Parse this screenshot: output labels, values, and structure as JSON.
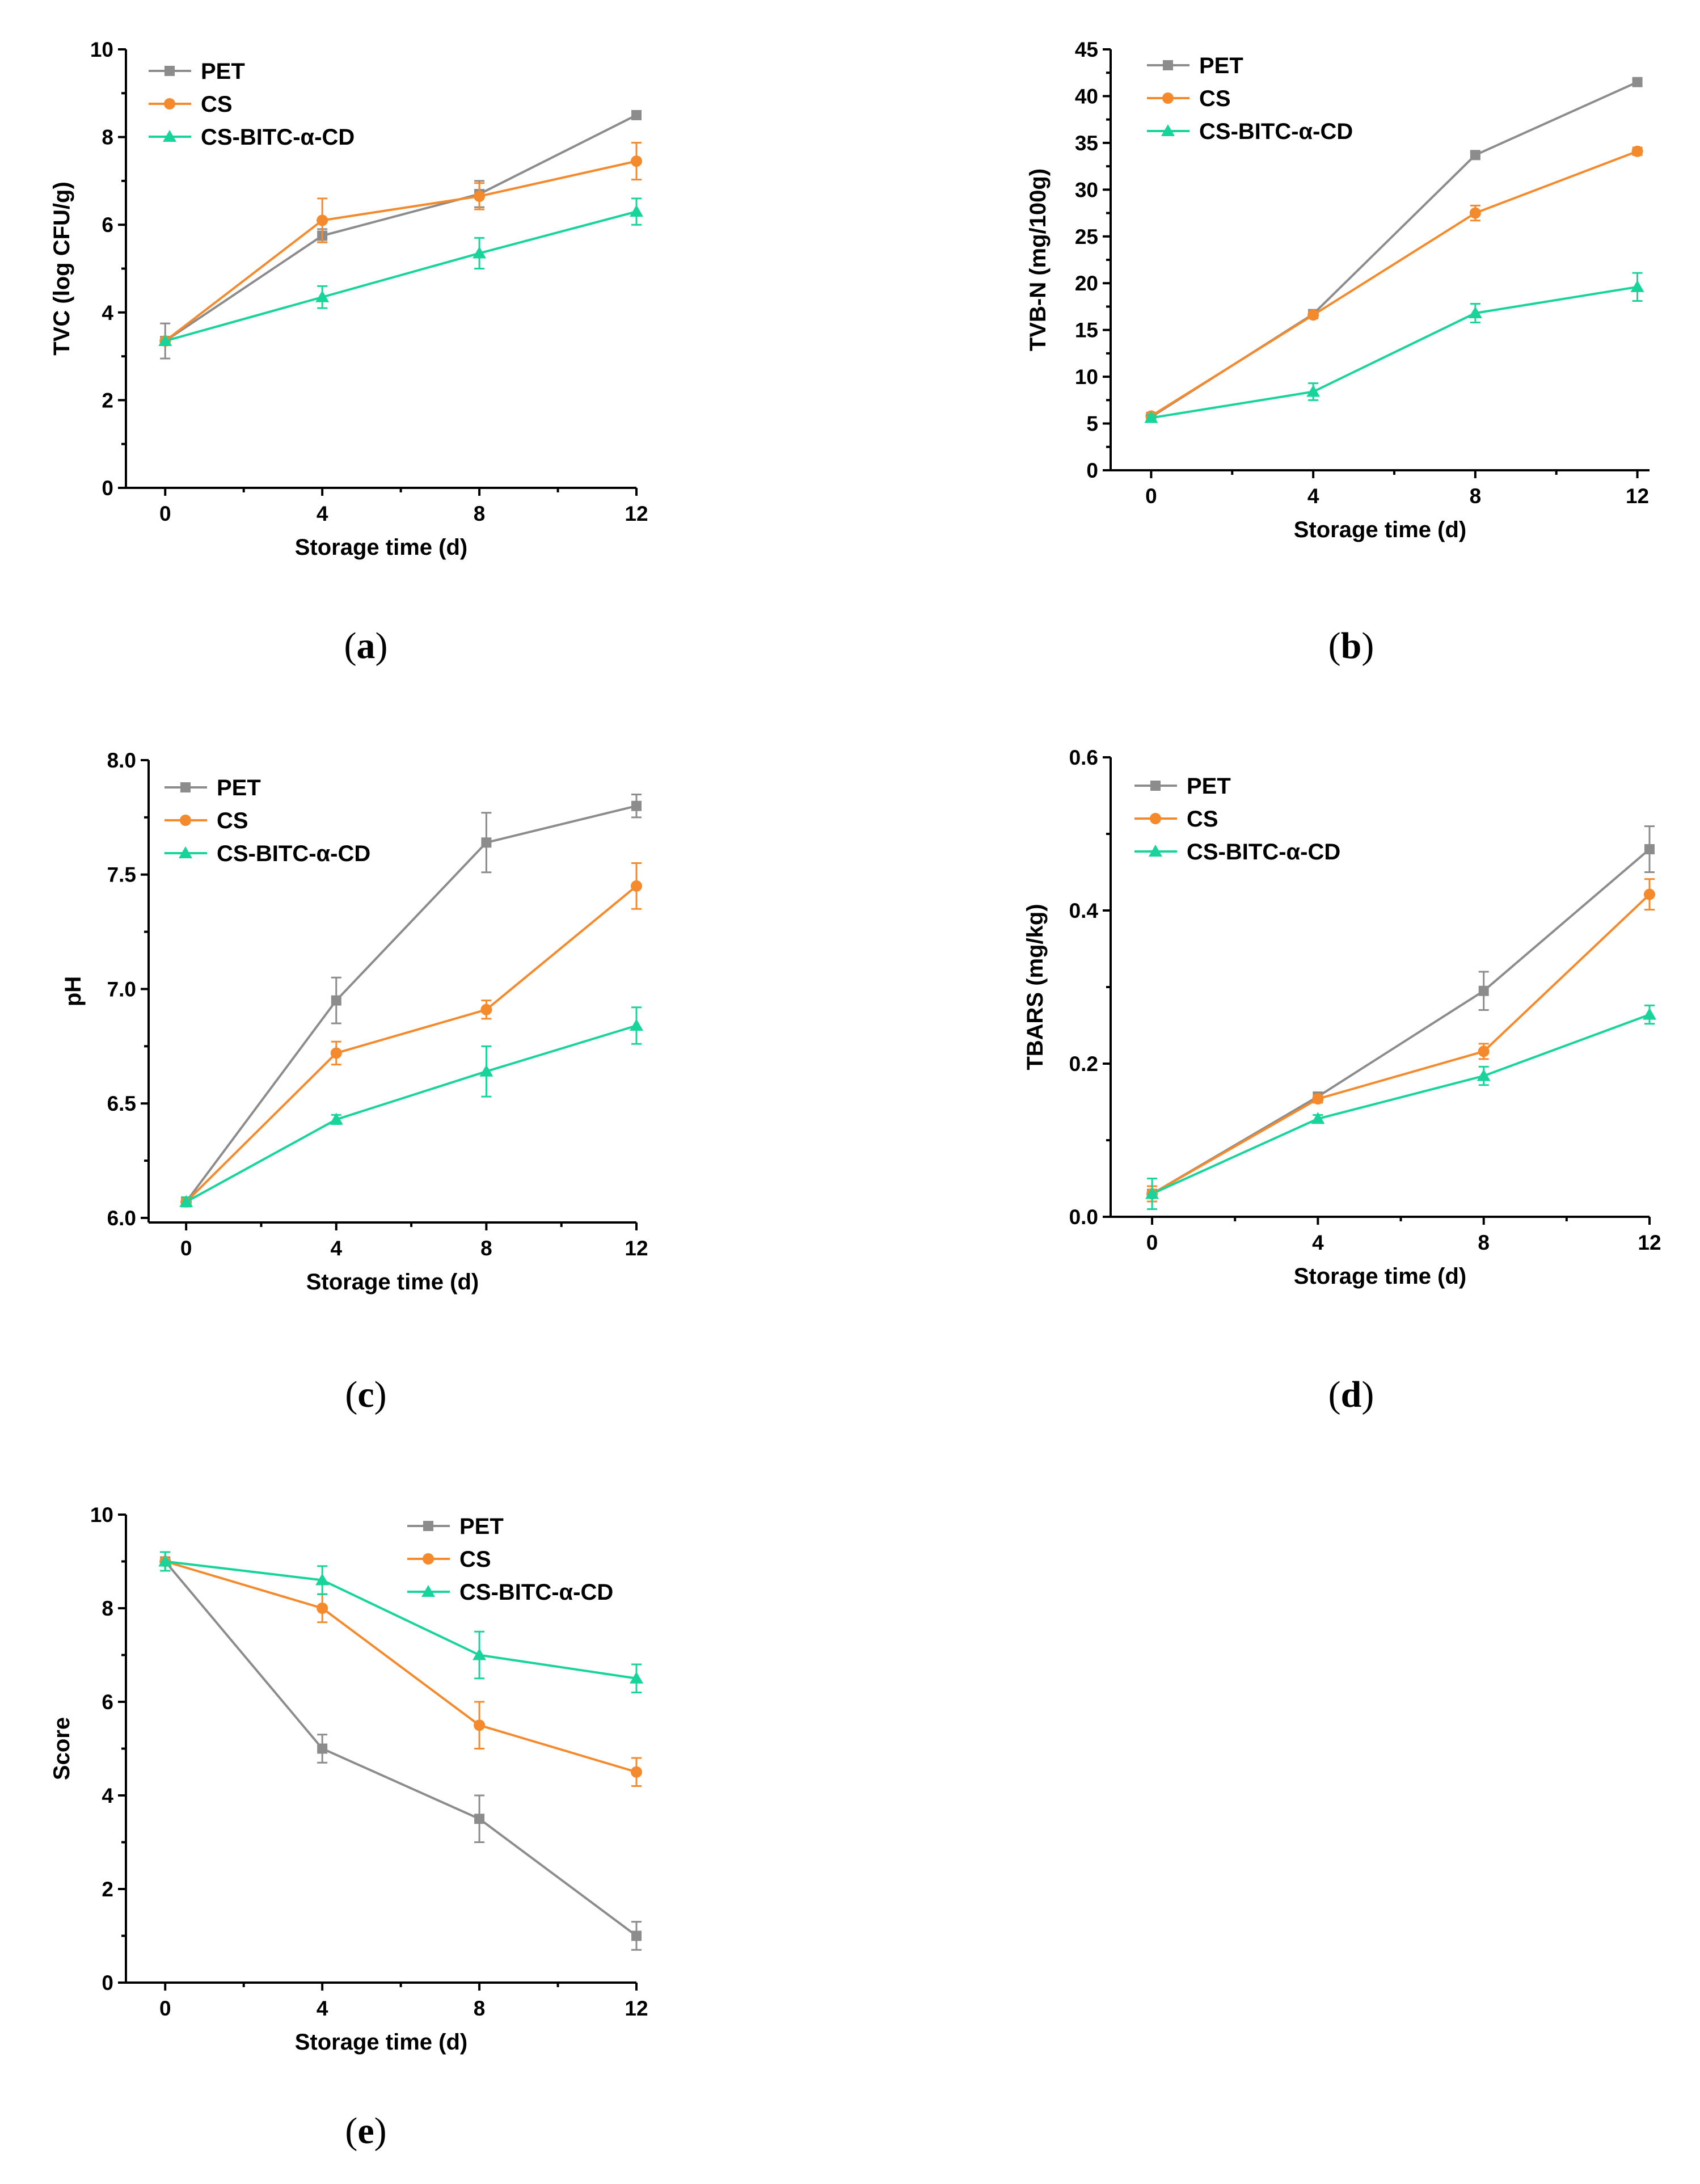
{
  "series_colors": {
    "PET": "#8c8c8c",
    "CS": "#f58a2c",
    "CS-BITC-α-CD": "#17d49a"
  },
  "chart_data": [
    {
      "id": "a",
      "caption_letter": "a",
      "type": "line",
      "xlabel": "Storage time (d)",
      "ylabel": "TVC (log CFU/g)",
      "x": [
        0,
        4,
        8,
        12
      ],
      "xlim": [
        -1,
        12
      ],
      "ylim": [
        0,
        10
      ],
      "yticks": [
        0,
        2,
        4,
        6,
        8,
        10
      ],
      "ytick_labels": [
        "0",
        "2",
        "4",
        "6",
        "8",
        "10"
      ],
      "xticks": [
        0,
        4,
        8,
        12
      ],
      "xtick_labels": [
        "0",
        "4",
        "8",
        "12"
      ],
      "legend_position": "top-left",
      "series": [
        {
          "name": "PET",
          "marker": "square",
          "values": [
            3.35,
            5.75,
            6.7,
            8.5
          ],
          "errors": [
            0.4,
            0.15,
            0.3,
            0.05
          ]
        },
        {
          "name": "CS",
          "marker": "circle",
          "values": [
            3.35,
            6.1,
            6.65,
            7.45
          ],
          "errors": [
            0.0,
            0.5,
            0.3,
            0.42
          ]
        },
        {
          "name": "CS-BITC-α-CD",
          "marker": "triangle",
          "values": [
            3.35,
            4.35,
            5.35,
            6.3
          ],
          "errors": [
            0.0,
            0.25,
            0.35,
            0.3
          ]
        }
      ]
    },
    {
      "id": "b",
      "caption_letter": "b",
      "type": "line",
      "xlabel": "Storage time (d)",
      "ylabel": "TVB-N (mg/100g)",
      "x": [
        0,
        4,
        8,
        12
      ],
      "xlim": [
        -1,
        12.3
      ],
      "ylim": [
        0,
        45
      ],
      "yticks": [
        0,
        5,
        10,
        15,
        20,
        25,
        30,
        35,
        40,
        45
      ],
      "ytick_labels": [
        "0",
        "5",
        "10",
        "15",
        "20",
        "25",
        "30",
        "35",
        "40",
        "45"
      ],
      "xticks": [
        0,
        4,
        8,
        12
      ],
      "xtick_labels": [
        "0",
        "4",
        "8",
        "12"
      ],
      "legend_position": "top-left",
      "series": [
        {
          "name": "PET",
          "marker": "square",
          "values": [
            5.7,
            16.7,
            33.7,
            41.5
          ],
          "errors": [
            0.3,
            0.3,
            0.3,
            0.3
          ]
        },
        {
          "name": "CS",
          "marker": "circle",
          "values": [
            5.8,
            16.6,
            27.5,
            34.1
          ],
          "errors": [
            0.3,
            0.3,
            0.8,
            0.4
          ]
        },
        {
          "name": "CS-BITC-α-CD",
          "marker": "triangle",
          "values": [
            5.6,
            8.4,
            16.8,
            19.6
          ],
          "errors": [
            0.3,
            0.9,
            1.0,
            1.5
          ]
        }
      ]
    },
    {
      "id": "c",
      "caption_letter": "c",
      "type": "line",
      "xlabel": "Storage time (d)",
      "ylabel": "pH",
      "x": [
        0,
        4,
        8,
        12
      ],
      "xlim": [
        -1,
        12
      ],
      "ylim": [
        5.98,
        8.0
      ],
      "yticks": [
        6.0,
        6.5,
        7.0,
        7.5,
        8.0
      ],
      "ytick_labels": [
        "6.0",
        "6.5",
        "7.0",
        "7.5",
        "8.0"
      ],
      "xticks": [
        0,
        4,
        8,
        12
      ],
      "xtick_labels": [
        "0",
        "4",
        "8",
        "12"
      ],
      "legend_position": "top-left",
      "series": [
        {
          "name": "PET",
          "marker": "square",
          "values": [
            6.07,
            6.95,
            7.64,
            7.8
          ],
          "errors": [
            0.02,
            0.1,
            0.13,
            0.05
          ]
        },
        {
          "name": "CS",
          "marker": "circle",
          "values": [
            6.07,
            6.72,
            6.91,
            7.45
          ],
          "errors": [
            0.02,
            0.05,
            0.04,
            0.1
          ]
        },
        {
          "name": "CS-BITC-α-CD",
          "marker": "triangle",
          "values": [
            6.07,
            6.43,
            6.64,
            6.84
          ],
          "errors": [
            0.02,
            0.02,
            0.11,
            0.08
          ]
        }
      ]
    },
    {
      "id": "d",
      "caption_letter": "d",
      "type": "line",
      "xlabel": "Storage time (d)",
      "ylabel": "TBARS (mg/kg)",
      "x": [
        0,
        4,
        8,
        12
      ],
      "xlim": [
        -1,
        12
      ],
      "ylim": [
        0,
        0.6
      ],
      "yticks": [
        0.0,
        0.2,
        0.4,
        0.6
      ],
      "ytick_labels": [
        "0.0",
        "0.2",
        "0.4",
        "0.6"
      ],
      "xticks": [
        0,
        4,
        8,
        12
      ],
      "xtick_labels": [
        "0",
        "4",
        "8",
        "12"
      ],
      "legend_position": "top-left",
      "series": [
        {
          "name": "PET",
          "marker": "square",
          "values": [
            0.03,
            0.157,
            0.295,
            0.48
          ],
          "errors": [
            0.01,
            0.005,
            0.025,
            0.03
          ]
        },
        {
          "name": "CS",
          "marker": "circle",
          "values": [
            0.03,
            0.154,
            0.216,
            0.421
          ],
          "errors": [
            0.01,
            0.005,
            0.01,
            0.02
          ]
        },
        {
          "name": "CS-BITC-α-CD",
          "marker": "triangle",
          "values": [
            0.03,
            0.128,
            0.184,
            0.264
          ],
          "errors": [
            0.02,
            0.005,
            0.012,
            0.012
          ]
        }
      ]
    },
    {
      "id": "e",
      "caption_letter": "e",
      "type": "line",
      "xlabel": "Storage time (d)",
      "ylabel": "Score",
      "x": [
        0,
        4,
        8,
        12
      ],
      "xlim": [
        -1,
        12
      ],
      "ylim": [
        0,
        10
      ],
      "yticks": [
        0,
        2,
        4,
        6,
        8,
        10
      ],
      "ytick_labels": [
        "0",
        "2",
        "4",
        "6",
        "8",
        "10"
      ],
      "xticks": [
        0,
        4,
        8,
        12
      ],
      "xtick_labels": [
        "0",
        "4",
        "8",
        "12"
      ],
      "legend_position": "top-right",
      "series": [
        {
          "name": "PET",
          "marker": "square",
          "values": [
            9.0,
            5.0,
            3.5,
            1.0
          ],
          "errors": [
            0.2,
            0.3,
            0.5,
            0.3
          ]
        },
        {
          "name": "CS",
          "marker": "circle",
          "values": [
            9.0,
            8.0,
            5.5,
            4.5
          ],
          "errors": [
            0.2,
            0.3,
            0.5,
            0.3
          ]
        },
        {
          "name": "CS-BITC-α-CD",
          "marker": "triangle",
          "values": [
            9.0,
            8.6,
            7.0,
            6.5
          ],
          "errors": [
            0.2,
            0.3,
            0.5,
            0.3
          ]
        }
      ]
    }
  ]
}
